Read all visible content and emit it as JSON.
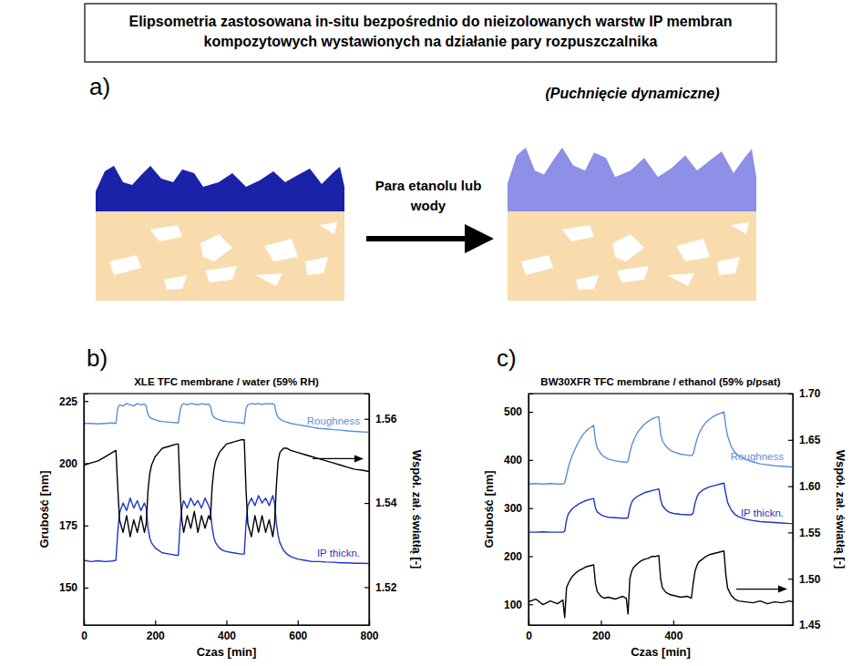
{
  "title": "Elipsometria zastosowana in-situ bezpośrednio do nieizolowanych warstw IP membran kompozytowych wystawionych na działanie pary rozpuszczalnika",
  "diagram": {
    "panel": "a)",
    "arrow_label": "Para etanolu lub wody",
    "caption": "(Puchnięcie dynamiczne)"
  },
  "chart_data": [
    {
      "type": "line",
      "panel": "b)",
      "title": "XLE TFC membrane / water (59% RH)",
      "x_label": "Czas [min]",
      "y_label": "Grubość [nm]",
      "y2_label": "Współ. zał. światłą [-]",
      "xlim": [
        0,
        800
      ],
      "xticks": [
        0,
        200,
        400,
        600,
        800
      ],
      "ylim": [
        135,
        228
      ],
      "yticks": [
        150,
        175,
        200,
        225
      ],
      "y2lim": [
        1.511,
        1.566
      ],
      "y2ticks": [
        1.52,
        1.54,
        1.56
      ],
      "x": [
        0,
        20,
        40,
        60,
        80,
        90,
        95,
        100,
        110,
        120,
        130,
        140,
        150,
        160,
        170,
        175,
        180,
        185,
        190,
        200,
        210,
        220,
        240,
        260,
        265,
        270,
        275,
        280,
        290,
        300,
        310,
        320,
        330,
        340,
        350,
        355,
        360,
        365,
        370,
        380,
        390,
        400,
        420,
        440,
        450,
        455,
        460,
        470,
        480,
        490,
        500,
        510,
        520,
        530,
        535,
        540,
        545,
        550,
        560,
        570,
        580,
        600,
        620,
        640,
        660,
        680,
        700,
        720,
        740,
        760,
        780,
        800
      ],
      "series": [
        {
          "name": "Roughness",
          "color": "#5b8fd6",
          "values": [
            216,
            216,
            215.8,
            216,
            216.2,
            216,
            222,
            223.5,
            223,
            224,
            223.5,
            223,
            224,
            223.5,
            223.8,
            223,
            219.5,
            218.5,
            218,
            217.5,
            217,
            216.8,
            216.5,
            216.3,
            216.2,
            221,
            223.5,
            224,
            223.5,
            224,
            223.8,
            223.5,
            224,
            223.6,
            223.8,
            223,
            219.5,
            218.5,
            218,
            217.5,
            217,
            216.8,
            216.5,
            216.2,
            216,
            222,
            223.5,
            224,
            223.8,
            224,
            223.6,
            224,
            223.8,
            224,
            223.5,
            220,
            218.5,
            217.8,
            217,
            216.5,
            216,
            215.5,
            215,
            214.5,
            214,
            213.8,
            213.5,
            213.3,
            213,
            212.8,
            212.6,
            212.5
          ]
        },
        {
          "name": "IP thickn.",
          "color": "#1f35c8",
          "values": [
            161,
            160.5,
            160.8,
            160.5,
            160.7,
            161,
            172,
            180,
            184,
            181,
            186,
            182,
            185,
            181,
            184,
            182,
            174,
            170,
            168,
            166,
            165,
            164,
            163.5,
            163,
            163,
            175,
            182,
            185,
            182,
            186,
            183,
            185,
            182,
            186,
            183,
            181,
            174,
            170,
            168,
            166,
            165,
            164.5,
            164,
            163.5,
            163.5,
            176,
            183,
            186,
            183,
            187,
            184,
            186,
            183,
            187,
            184,
            176,
            171,
            168,
            165,
            163.5,
            162.5,
            161.5,
            161,
            160.5,
            160.5,
            160.3,
            160.2,
            160,
            160,
            159.8,
            159.8,
            159.7
          ]
        },
        {
          "color": "#000000",
          "axis": "y2",
          "values": [
            1.549,
            1.5495,
            1.55,
            1.551,
            1.552,
            1.5525,
            1.544,
            1.536,
            1.533,
            1.537,
            1.532,
            1.536,
            1.533,
            1.537,
            1.533,
            1.535,
            1.543,
            1.547,
            1.549,
            1.551,
            1.552,
            1.553,
            1.5535,
            1.554,
            1.554,
            1.543,
            1.536,
            1.533,
            1.537,
            1.534,
            1.538,
            1.533,
            1.537,
            1.534,
            1.537,
            1.536,
            1.544,
            1.548,
            1.55,
            1.552,
            1.553,
            1.554,
            1.5545,
            1.555,
            1.555,
            1.543,
            1.535,
            1.532,
            1.537,
            1.533,
            1.537,
            1.533,
            1.536,
            1.532,
            1.535,
            1.544,
            1.55,
            1.552,
            1.553,
            1.553,
            1.5525,
            1.552,
            1.5515,
            1.551,
            1.5505,
            1.55,
            1.5495,
            1.549,
            1.5485,
            1.548,
            1.5478,
            1.5475
          ]
        }
      ]
    },
    {
      "type": "line",
      "panel": "c)",
      "title": "BW30XFR TFC membrane / ethanol (59% p/psat)",
      "x_label": "Czas [min]",
      "y_label": "Grubość [nm]",
      "y2_label": "Współ. zał. światłą [-]",
      "xlim": [
        0,
        730
      ],
      "xticks": [
        0,
        200,
        400
      ],
      "ylim": [
        57,
        538
      ],
      "yticks": [
        100,
        200,
        300,
        400,
        500
      ],
      "y2lim": [
        1.45,
        1.7
      ],
      "y2ticks": [
        1.45,
        {
          "value": 1.5,
          "label": "1.50"
        },
        1.55,
        {
          "value": 1.6,
          "label": "1.60"
        },
        1.65,
        {
          "value": 1.7,
          "label": "1.70"
        }
      ],
      "x": [
        0,
        20,
        40,
        60,
        80,
        95,
        100,
        105,
        110,
        120,
        130,
        140,
        150,
        160,
        170,
        180,
        185,
        190,
        200,
        210,
        220,
        240,
        260,
        270,
        275,
        280,
        285,
        290,
        300,
        310,
        320,
        330,
        340,
        350,
        360,
        365,
        370,
        380,
        390,
        400,
        420,
        440,
        450,
        455,
        460,
        465,
        470,
        480,
        490,
        500,
        510,
        520,
        530,
        540,
        545,
        550,
        560,
        570,
        580,
        600,
        620,
        640,
        660,
        680,
        700,
        720,
        730
      ],
      "series": [
        {
          "name": "Roughness",
          "color": "#5b8fd6",
          "values": [
            350,
            351,
            350,
            351,
            350,
            350,
            352,
            368,
            385,
            408,
            425,
            440,
            452,
            461,
            467,
            472,
            440,
            425,
            413,
            406,
            402,
            398,
            396,
            395,
            397,
            415,
            430,
            440,
            456,
            466,
            474,
            480,
            485,
            488,
            490,
            455,
            440,
            428,
            421,
            417,
            412,
            410,
            409,
            412,
            428,
            442,
            453,
            468,
            478,
            485,
            490,
            494,
            497,
            500,
            470,
            450,
            428,
            416,
            409,
            401,
            396,
            392,
            390,
            388,
            387,
            386,
            385
          ]
        },
        {
          "name": "IP thickn.",
          "color": "#1f35c8",
          "values": [
            250,
            250,
            250.5,
            250,
            250,
            250,
            252,
            275,
            288,
            298,
            304,
            309,
            313,
            316,
            318,
            320,
            300,
            292,
            286,
            283,
            281,
            280,
            279,
            279,
            280,
            300,
            312,
            318,
            324,
            328,
            332,
            334,
            336,
            338,
            340,
            318,
            305,
            296,
            291,
            289,
            287,
            286,
            286,
            290,
            310,
            322,
            330,
            337,
            341,
            344,
            346,
            348,
            350,
            352,
            330,
            312,
            296,
            287,
            282,
            277,
            274,
            272,
            271,
            270,
            269,
            268,
            268
          ]
        },
        {
          "color": "#000000",
          "axis": "y2",
          "values": [
            1.475,
            1.478,
            1.472,
            1.476,
            1.473,
            1.477,
            1.458,
            1.49,
            1.495,
            1.502,
            1.506,
            1.509,
            1.511,
            1.513,
            1.514,
            1.515,
            1.495,
            1.486,
            1.481,
            1.479,
            1.48,
            1.478,
            1.481,
            1.479,
            1.462,
            1.5,
            1.508,
            1.512,
            1.516,
            1.519,
            1.521,
            1.522,
            1.524,
            1.524,
            1.525,
            1.5,
            1.49,
            1.485,
            1.483,
            1.482,
            1.48,
            1.481,
            1.479,
            1.495,
            1.508,
            1.514,
            1.518,
            1.521,
            1.524,
            1.526,
            1.527,
            1.528,
            1.529,
            1.53,
            1.505,
            1.49,
            1.482,
            1.478,
            1.476,
            1.475,
            1.474,
            1.476,
            1.473,
            1.475,
            1.474,
            1.476,
            1.475
          ]
        }
      ]
    }
  ]
}
